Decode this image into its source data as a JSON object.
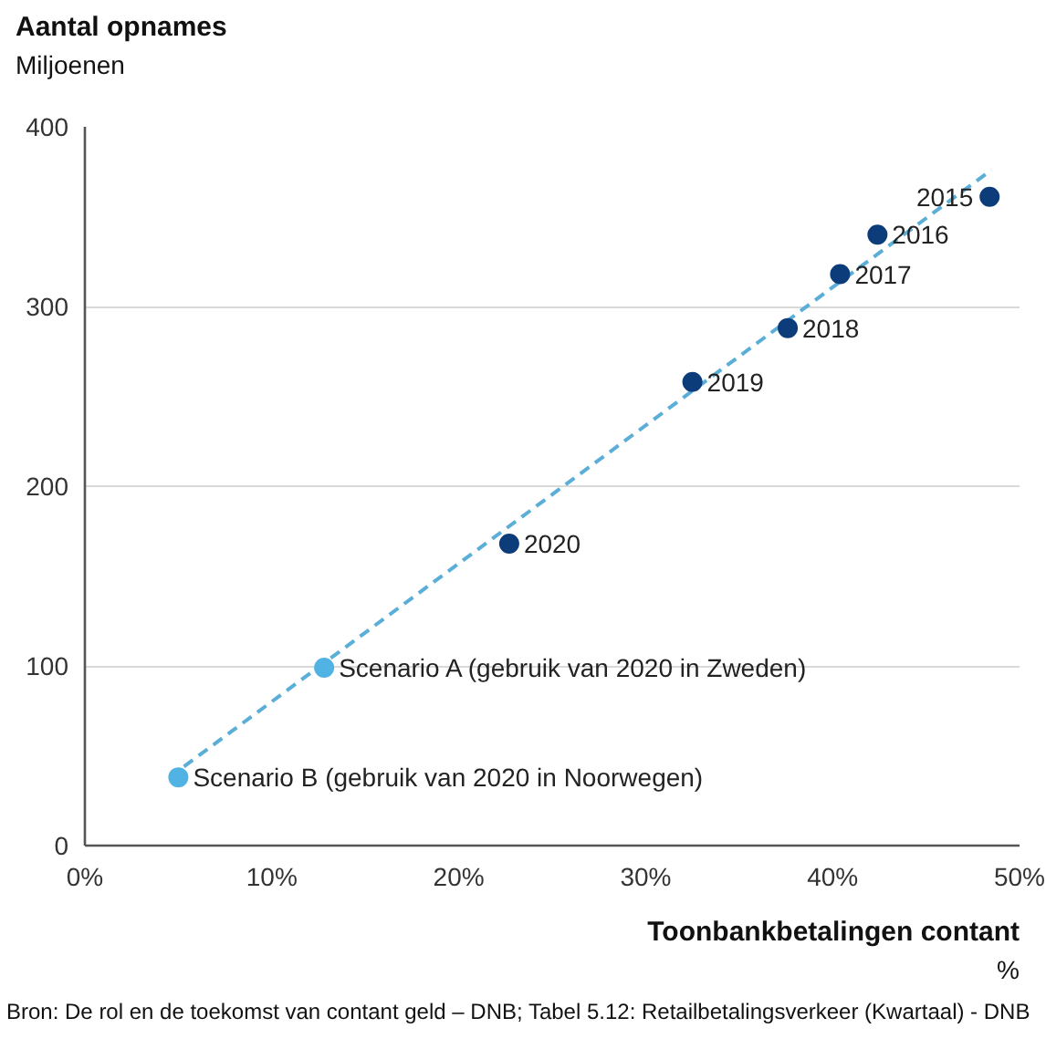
{
  "chart_data": {
    "type": "scatter",
    "xlabel": "Toonbankbetalingen contant\n%",
    "ylabel": "Aantal opnames\nMiljoenen",
    "xlim": [
      0,
      50
    ],
    "ylim": [
      0,
      400
    ],
    "xticks": [
      {
        "value": 0,
        "label": "0%"
      },
      {
        "value": 10,
        "label": "10%"
      },
      {
        "value": 20,
        "label": "20%"
      },
      {
        "value": 30,
        "label": "30%"
      },
      {
        "value": 40,
        "label": "40%"
      },
      {
        "value": 50,
        "label": "50%"
      }
    ],
    "yticks": [
      0,
      100,
      200,
      300,
      400
    ],
    "grid": "y",
    "marker": "circle",
    "series": [
      {
        "type": "line",
        "color": "#5aaed8",
        "line_style": "dashed",
        "marker": "none",
        "x": [
          5.3,
          48.5
        ],
        "values": [
          44,
          376
        ]
      },
      {
        "color": "#0c3c7a",
        "x": [
          48.4,
          42.4,
          40.4,
          37.6,
          32.5,
          22.7
        ],
        "values": [
          361,
          340,
          318,
          288,
          258,
          168
        ]
      },
      {
        "color": "#50b3e3",
        "x": [
          12.8,
          5.0
        ],
        "values": [
          99,
          38
        ]
      }
    ],
    "annotations": [
      {
        "text": "2015",
        "x": 48.4,
        "y": 361
      },
      {
        "text": "2016",
        "x": 42.4,
        "y": 340
      },
      {
        "text": "2017",
        "x": 40.4,
        "y": 318
      },
      {
        "text": "2018",
        "x": 37.6,
        "y": 288
      },
      {
        "text": "2019",
        "x": 32.5,
        "y": 258
      },
      {
        "text": "2020",
        "x": 22.7,
        "y": 168
      },
      {
        "text": "Scenario A (gebruik van 2020 in Zweden)",
        "x": 12.8,
        "y": 99
      },
      {
        "text": "Scenario B (gebruik van 2020 in Noorwegen)",
        "x": 5.0,
        "y": 38
      },
      "Bron: De rol en de toekomst van contant geld – DNB; Tabel 5.12: Retailbetalingsverkeer (Kwartaal) - DNB"
    ]
  }
}
